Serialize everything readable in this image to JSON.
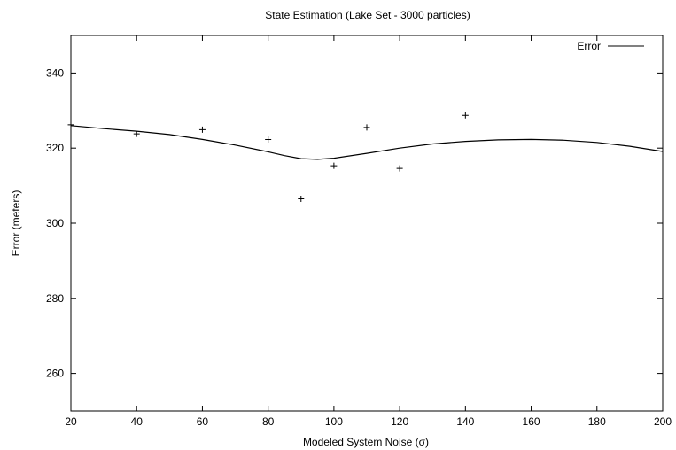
{
  "chart_data": {
    "type": "scatter",
    "title": "State Estimation (Lake Set - 3000 particles)",
    "xlabel": "Modeled System Noise (σ)",
    "ylabel": "Error (meters)",
    "xlim": [
      20,
      200
    ],
    "ylim": [
      250,
      350
    ],
    "xticks": [
      20,
      40,
      60,
      80,
      100,
      120,
      140,
      160,
      180,
      200
    ],
    "yticks": [
      260,
      280,
      300,
      320,
      340
    ],
    "grid": false,
    "legend_position": "top-right",
    "series": [
      {
        "type": "scatter",
        "marker": "+",
        "x": [
          20,
          40,
          60,
          80,
          90,
          100,
          110,
          120,
          140
        ],
        "y": [
          326.2,
          323.8,
          324.9,
          322.3,
          306.5,
          315.3,
          325.5,
          314.6,
          328.7
        ]
      },
      {
        "name": "Error",
        "type": "line",
        "x": [
          20,
          30,
          40,
          50,
          60,
          70,
          80,
          85,
          90,
          95,
          100,
          110,
          120,
          130,
          140,
          150,
          160,
          170,
          180,
          190,
          200
        ],
        "y": [
          326.0,
          325.2,
          324.5,
          323.6,
          322.3,
          320.8,
          319.0,
          318.0,
          317.2,
          317.0,
          317.3,
          318.6,
          320.0,
          321.1,
          321.8,
          322.2,
          322.3,
          322.1,
          321.5,
          320.5,
          319.1
        ]
      }
    ]
  }
}
